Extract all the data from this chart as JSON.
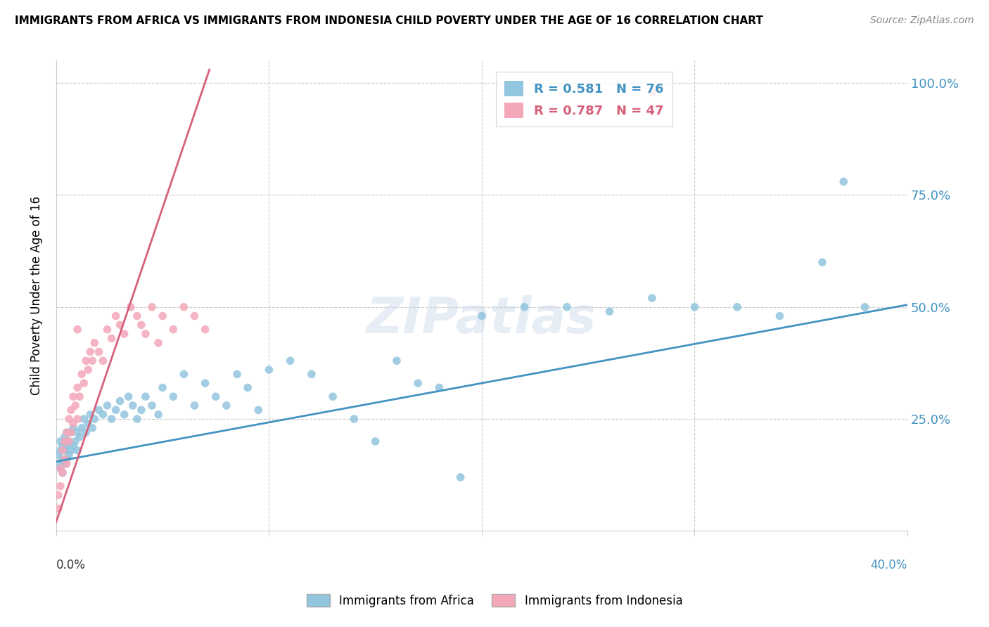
{
  "title": "IMMIGRANTS FROM AFRICA VS IMMIGRANTS FROM INDONESIA CHILD POVERTY UNDER THE AGE OF 16 CORRELATION CHART",
  "source": "Source: ZipAtlas.com",
  "ylabel": "Child Poverty Under the Age of 16",
  "color_africa": "#92C5DE",
  "color_africa_line": "#4393C3",
  "color_indonesia": "#F4A7B9",
  "color_indonesia_line": "#D6607A",
  "legend_label_africa": "Immigrants from Africa",
  "legend_label_indonesia": "Immigrants from Indonesia",
  "africa_x": [
    0.001,
    0.001,
    0.002,
    0.002,
    0.002,
    0.003,
    0.003,
    0.003,
    0.004,
    0.004,
    0.004,
    0.005,
    0.005,
    0.005,
    0.006,
    0.006,
    0.007,
    0.007,
    0.008,
    0.008,
    0.009,
    0.01,
    0.01,
    0.011,
    0.012,
    0.013,
    0.014,
    0.015,
    0.016,
    0.017,
    0.018,
    0.02,
    0.022,
    0.024,
    0.026,
    0.028,
    0.03,
    0.032,
    0.034,
    0.036,
    0.038,
    0.04,
    0.042,
    0.045,
    0.048,
    0.05,
    0.055,
    0.06,
    0.065,
    0.07,
    0.075,
    0.08,
    0.085,
    0.09,
    0.095,
    0.1,
    0.11,
    0.12,
    0.13,
    0.14,
    0.15,
    0.16,
    0.17,
    0.18,
    0.19,
    0.2,
    0.22,
    0.24,
    0.26,
    0.28,
    0.3,
    0.32,
    0.34,
    0.36,
    0.37,
    0.38
  ],
  "africa_y": [
    0.15,
    0.17,
    0.14,
    0.18,
    0.2,
    0.13,
    0.16,
    0.19,
    0.15,
    0.18,
    0.21,
    0.16,
    0.19,
    0.22,
    0.17,
    0.2,
    0.18,
    0.22,
    0.19,
    0.23,
    0.2,
    0.18,
    0.22,
    0.21,
    0.23,
    0.25,
    0.22,
    0.24,
    0.26,
    0.23,
    0.25,
    0.27,
    0.26,
    0.28,
    0.25,
    0.27,
    0.29,
    0.26,
    0.3,
    0.28,
    0.25,
    0.27,
    0.3,
    0.28,
    0.26,
    0.32,
    0.3,
    0.35,
    0.28,
    0.33,
    0.3,
    0.28,
    0.35,
    0.32,
    0.27,
    0.36,
    0.38,
    0.35,
    0.3,
    0.25,
    0.2,
    0.38,
    0.33,
    0.32,
    0.12,
    0.48,
    0.5,
    0.5,
    0.49,
    0.52,
    0.5,
    0.5,
    0.48,
    0.6,
    0.78,
    0.5
  ],
  "indonesia_x": [
    0.001,
    0.001,
    0.002,
    0.002,
    0.003,
    0.003,
    0.004,
    0.004,
    0.005,
    0.005,
    0.006,
    0.006,
    0.007,
    0.007,
    0.008,
    0.008,
    0.009,
    0.01,
    0.01,
    0.011,
    0.012,
    0.013,
    0.014,
    0.015,
    0.016,
    0.017,
    0.018,
    0.02,
    0.022,
    0.024,
    0.026,
    0.028,
    0.03,
    0.032,
    0.035,
    0.038,
    0.04,
    0.042,
    0.045,
    0.048,
    0.05,
    0.055,
    0.06,
    0.065,
    0.07,
    0.01,
    0.28
  ],
  "indonesia_y": [
    0.05,
    0.08,
    0.1,
    0.14,
    0.13,
    0.18,
    0.16,
    0.2,
    0.15,
    0.22,
    0.2,
    0.25,
    0.22,
    0.27,
    0.24,
    0.3,
    0.28,
    0.25,
    0.32,
    0.3,
    0.35,
    0.33,
    0.38,
    0.36,
    0.4,
    0.38,
    0.42,
    0.4,
    0.38,
    0.45,
    0.43,
    0.48,
    0.46,
    0.44,
    0.5,
    0.48,
    0.46,
    0.44,
    0.5,
    0.42,
    0.48,
    0.45,
    0.5,
    0.48,
    0.45,
    0.45,
    0.98
  ],
  "xlim": [
    0.0,
    0.4
  ],
  "ylim": [
    0.0,
    1.05
  ],
  "xticks": [
    0.0,
    0.1,
    0.2,
    0.3,
    0.4
  ],
  "yticks": [
    0.0,
    0.25,
    0.5,
    0.75,
    1.0
  ],
  "ytick_labels_right": [
    "",
    "25.0%",
    "50.0%",
    "75.0%",
    "100.0%"
  ]
}
